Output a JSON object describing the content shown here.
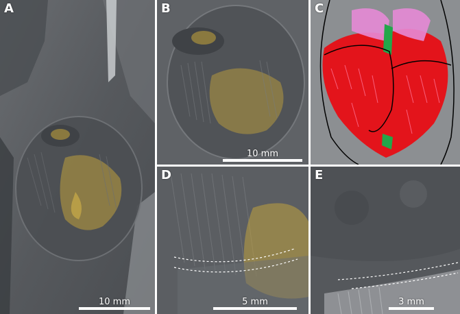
{
  "figure": {
    "panels": [
      {
        "letter": "A",
        "scale_label": "10 mm"
      },
      {
        "letter": "B",
        "scale_label": "10 mm"
      },
      {
        "letter": "C",
        "scale_label": ""
      },
      {
        "letter": "D",
        "scale_label": "5 mm"
      },
      {
        "letter": "E",
        "scale_label": "3 mm"
      }
    ]
  },
  "colors": {
    "rock": "#5c5f63",
    "rock_dark": "#3c3f43",
    "rock_light": "#8a8d90",
    "mineral_yellow": "#c9a83a",
    "annotation_red": "#e3141b",
    "annotation_pink": "#e58ad6",
    "annotation_green": "#22a74a",
    "outline": "#000000",
    "dashed_line": "#ffffff",
    "label": "#ffffff"
  }
}
